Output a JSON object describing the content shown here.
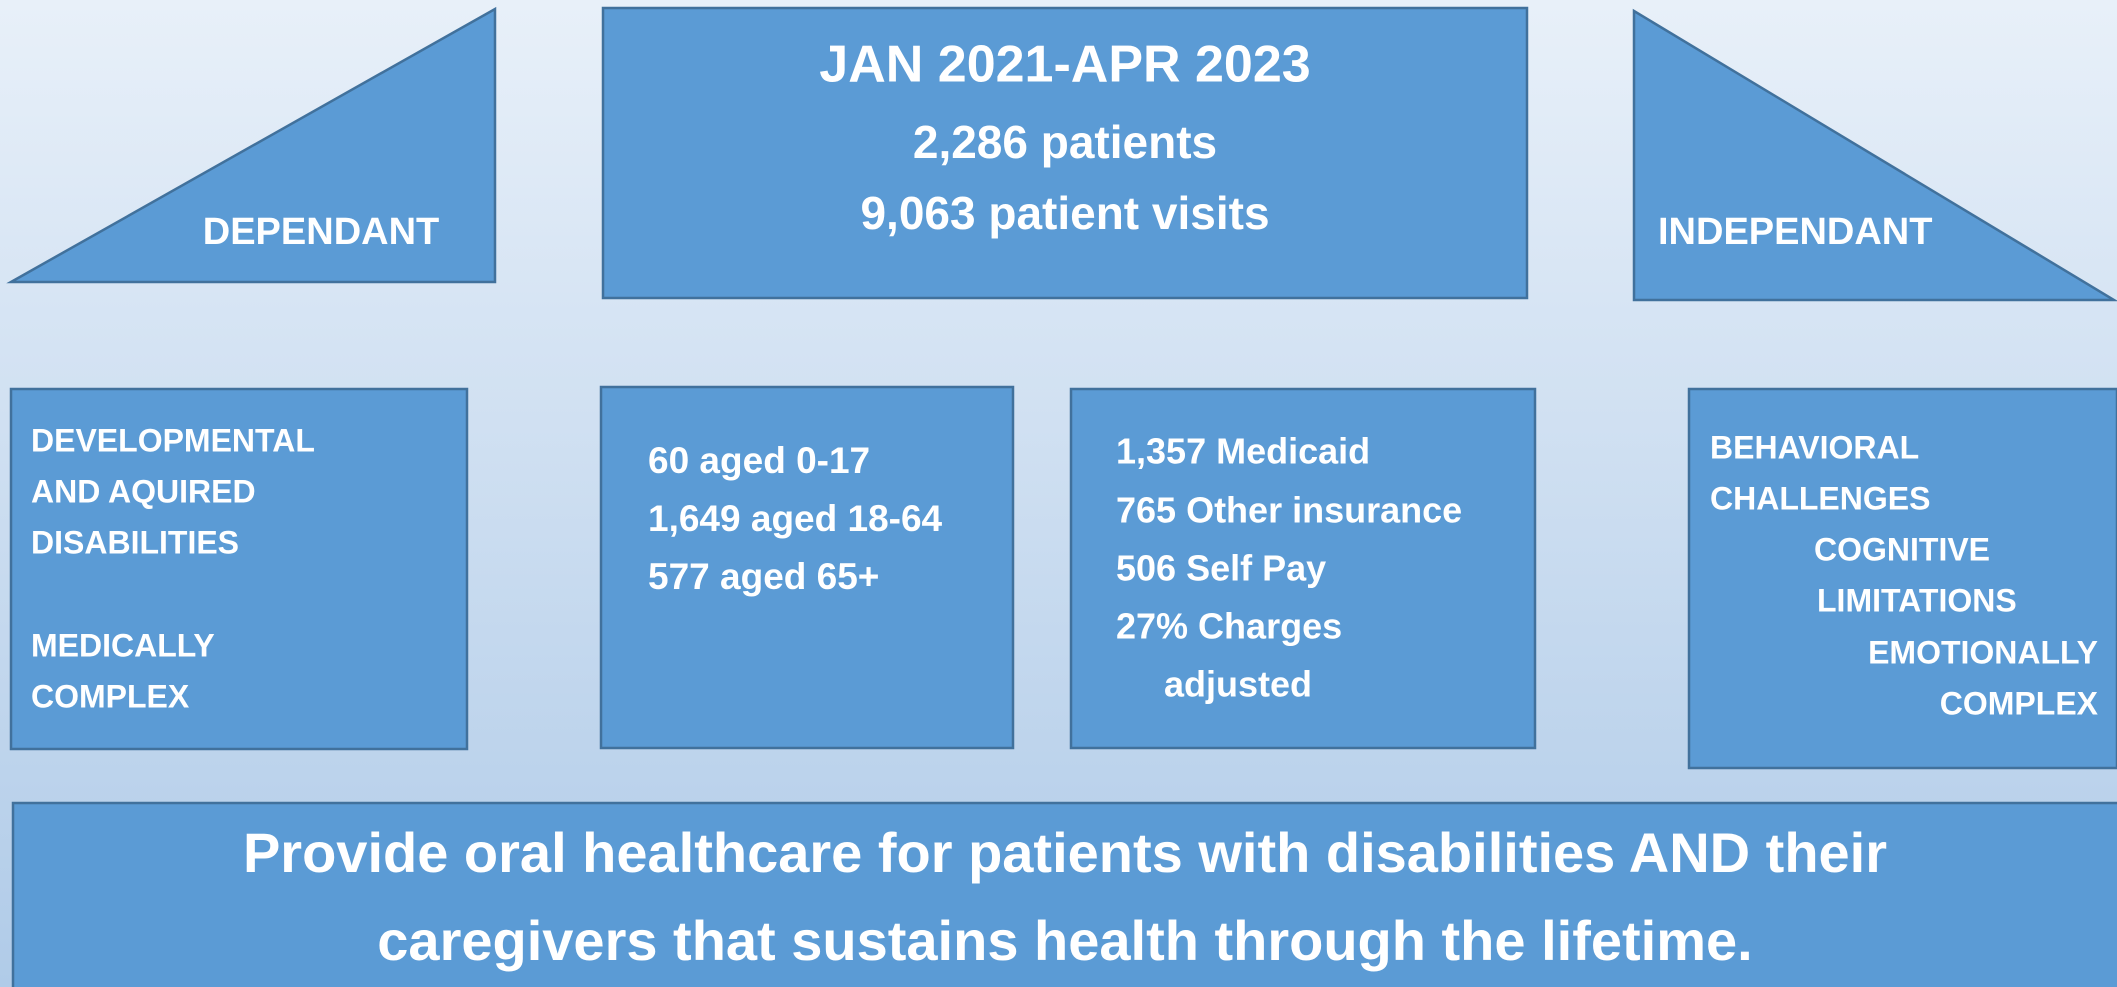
{
  "left_triangle": {
    "label": "DEPENDANT"
  },
  "header": {
    "lines": [
      "JAN 2021-APR 2023",
      "2,286 patients",
      "9,063 patient visits"
    ]
  },
  "right_triangle": {
    "label": "INDEPENDANT"
  },
  "boxes": [
    {
      "lines": [
        "DEVELOPMENTAL",
        "AND AQUIRED",
        "DISABILITIES",
        "MEDICALLY",
        "COMPLEX"
      ]
    },
    {
      "lines": [
        "60 aged 0-17",
        "1,649 aged 18-64",
        "577 aged 65+"
      ]
    },
    {
      "lines": [
        "1,357 Medicaid",
        "765 Other insurance",
        "506 Self Pay",
        "27% Charges",
        "adjusted"
      ]
    },
    {
      "lines": [
        "BEHAVIORAL",
        "CHALLENGES",
        "COGNITIVE",
        "LIMITATIONS",
        "EMOTIONALLY",
        "COMPLEX"
      ]
    }
  ],
  "mission": {
    "lines": [
      "Provide oral healthcare for patients with disabilities AND their",
      "caregivers that sustains health through the lifetime."
    ]
  }
}
